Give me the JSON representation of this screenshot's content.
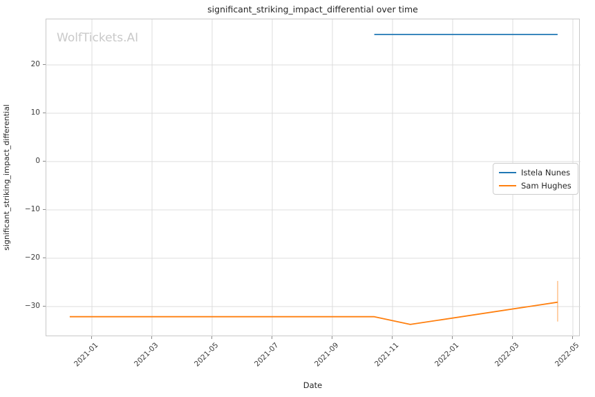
{
  "figure": {
    "title": "significant_striking_impact_differential over time",
    "watermark": "WolfTickets.AI",
    "xlabel": "Date",
    "ylabel": "significant_striking_impact_differential"
  },
  "chart_data": {
    "type": "line",
    "title": "significant_striking_impact_differential over time",
    "xlabel": "Date",
    "ylabel": "significant_striking_impact_differential",
    "x_tick_labels": [
      "2021-01",
      "2021-03",
      "2021-05",
      "2021-07",
      "2021-09",
      "2021-11",
      "2022-01",
      "2022-03",
      "2022-05"
    ],
    "y_ticks": [
      20,
      10,
      0,
      -10,
      -20,
      -30
    ],
    "xlim": [
      "2020-11-15",
      "2022-05-08"
    ],
    "ylim": [
      -36.3,
      29.4
    ],
    "grid": true,
    "legend_position": "center right",
    "colors": {
      "grid": "#dcdcdc",
      "axes_border": "#c8c8c8",
      "text": "#262626",
      "watermark": "#c9c9c9"
    },
    "series": [
      {
        "name": "Istela Nunes",
        "color": "#1f77b4",
        "points": [
          [
            "2021-10-13",
            26.3
          ],
          [
            "2022-04-16",
            26.3
          ]
        ]
      },
      {
        "name": "Sam Hughes",
        "color": "#ff7f0e",
        "points": [
          [
            "2020-12-09",
            -32.1
          ],
          [
            "2021-10-13",
            -32.1
          ],
          [
            "2021-11-19",
            -33.7
          ],
          [
            "2022-04-16",
            -29.1
          ]
        ],
        "error_bar": {
          "x": "2022-04-16",
          "y_low": -33.1,
          "y_high": -24.7,
          "opacity": 0.45
        }
      }
    ]
  }
}
